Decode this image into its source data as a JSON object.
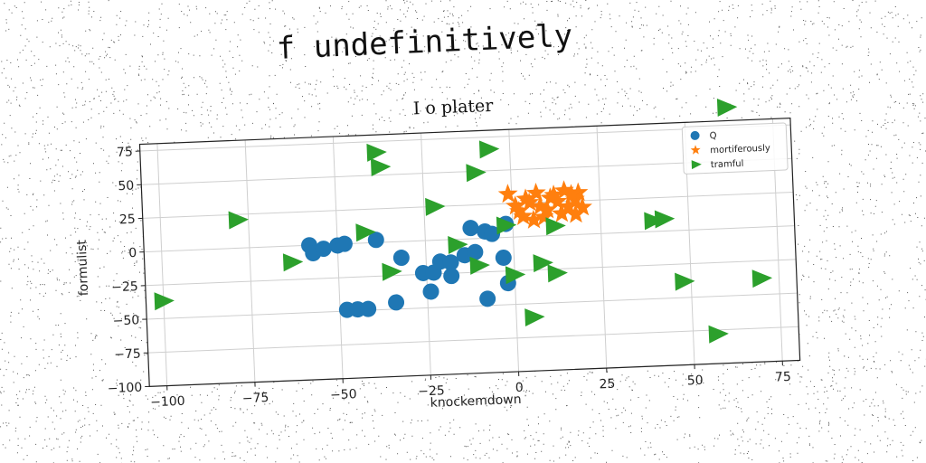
{
  "supertitle": "f undefinitively",
  "chart_data": {
    "type": "scatter",
    "title": "I o plater",
    "xlabel": "knockemdown",
    "ylabel": "formulist",
    "xlim": [
      -105,
      80
    ],
    "ylim": [
      -100,
      80
    ],
    "xticks": [
      -100,
      -75,
      -50,
      -25,
      0,
      25,
      50,
      75
    ],
    "yticks": [
      -100,
      -75,
      -50,
      -25,
      0,
      25,
      50,
      75
    ],
    "xtick_labels": [
      "−100",
      "−75",
      "−50",
      "−25",
      "0",
      "25",
      "50",
      "75"
    ],
    "ytick_labels": [
      "−100",
      "−75",
      "−50",
      "−25",
      "0",
      "25",
      "50",
      "75"
    ],
    "grid": true,
    "legend_position": "top-right",
    "series": [
      {
        "name": "Q",
        "marker": "circle",
        "color": "#1f77b4",
        "points": [
          [
            -58,
            0
          ],
          [
            -57,
            -6
          ],
          [
            -54,
            -3
          ],
          [
            -50,
            -1
          ],
          [
            -48,
            0
          ],
          [
            -39,
            2
          ],
          [
            -32,
            -12
          ],
          [
            -26,
            -24
          ],
          [
            -23,
            -24
          ],
          [
            -21,
            -16
          ],
          [
            -18,
            -17
          ],
          [
            -14,
            -12
          ],
          [
            -12,
            8
          ],
          [
            -11,
            -10
          ],
          [
            -8,
            5
          ],
          [
            -6,
            3
          ],
          [
            -3,
            -15
          ],
          [
            -2,
            -34
          ],
          [
            -2,
            10
          ],
          [
            -18,
            -27
          ],
          [
            -24,
            -38
          ],
          [
            -34,
            -45
          ],
          [
            -48,
            -49
          ],
          [
            -45,
            -49
          ],
          [
            -42,
            -49
          ],
          [
            -8,
            -45
          ]
        ]
      },
      {
        "name": "mortiferously",
        "marker": "star",
        "color": "#ff7f0e",
        "points": [
          [
            -1,
            32
          ],
          [
            1,
            23
          ],
          [
            3,
            15
          ],
          [
            4,
            28
          ],
          [
            6,
            12
          ],
          [
            7,
            32
          ],
          [
            8,
            22
          ],
          [
            10,
            19
          ],
          [
            11,
            28
          ],
          [
            13,
            25
          ],
          [
            14,
            16
          ],
          [
            15,
            33
          ],
          [
            16,
            21
          ],
          [
            18,
            15
          ],
          [
            18,
            26
          ],
          [
            19,
            31
          ],
          [
            20,
            20
          ],
          [
            2,
            19
          ],
          [
            9,
            14
          ],
          [
            12,
            30
          ],
          [
            5,
            25
          ],
          [
            17,
            30
          ]
        ]
      },
      {
        "name": "tramful",
        "marker": "triangle-right",
        "color": "#2ca02c",
        "points": [
          [
            -100,
            -37
          ],
          [
            -78,
            21
          ],
          [
            -63,
            -12
          ],
          [
            -42,
            8
          ],
          [
            -38,
            67
          ],
          [
            -37,
            56
          ],
          [
            -35,
            -22
          ],
          [
            -22,
            25
          ],
          [
            -16,
            -4
          ],
          [
            -10,
            49
          ],
          [
            -10,
            -20
          ],
          [
            -6,
            66
          ],
          [
            -2,
            9
          ],
          [
            0,
            -28
          ],
          [
            5,
            -60
          ],
          [
            8,
            -20
          ],
          [
            12,
            -28
          ],
          [
            12,
            7
          ],
          [
            40,
            8
          ],
          [
            43,
            9
          ],
          [
            48,
            -38
          ],
          [
            57,
            -78
          ],
          [
            62,
            90
          ],
          [
            70,
            -38
          ]
        ]
      }
    ]
  }
}
